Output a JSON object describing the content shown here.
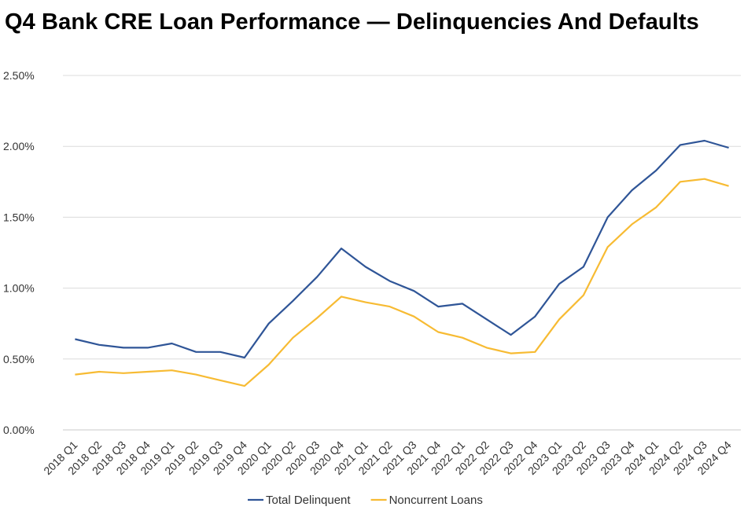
{
  "chart_data": {
    "type": "line",
    "title": "Q4 Bank CRE Loan Performance — Delinquencies And Defaults",
    "xlabel": "",
    "ylabel": "",
    "ylim": [
      0,
      2.5
    ],
    "y_ticks": [
      "0.00%",
      "0.50%",
      "1.00%",
      "1.50%",
      "2.00%",
      "2.50%"
    ],
    "y_tick_values": [
      0,
      0.5,
      1.0,
      1.5,
      2.0,
      2.5
    ],
    "grid": "horizontal",
    "legend_position": "bottom",
    "categories": [
      "2018 Q1",
      "2018 Q2",
      "2018 Q3",
      "2018 Q4",
      "2019 Q1",
      "2019 Q2",
      "2019 Q3",
      "2019 Q4",
      "2020 Q1",
      "2020 Q2",
      "2020 Q3",
      "2020 Q4",
      "2021 Q1",
      "2021 Q2",
      "2021 Q3",
      "2021 Q4",
      "2022 Q1",
      "2022 Q2",
      "2022 Q3",
      "2022 Q4",
      "2023 Q1",
      "2023 Q2",
      "2023 Q3",
      "2023 Q4",
      "2024 Q1",
      "2024 Q2",
      "2024 Q3",
      "2024 Q4"
    ],
    "series": [
      {
        "name": "Total Delinquent",
        "color": "#2f5597",
        "values": [
          0.64,
          0.6,
          0.58,
          0.58,
          0.61,
          0.55,
          0.55,
          0.51,
          0.75,
          0.91,
          1.08,
          1.28,
          1.15,
          1.05,
          0.98,
          0.87,
          0.89,
          0.78,
          0.67,
          0.8,
          1.03,
          1.15,
          1.5,
          1.69,
          1.83,
          2.01,
          2.04,
          1.99
        ]
      },
      {
        "name": "Noncurrent Loans",
        "color": "#f7bb33",
        "values": [
          0.39,
          0.41,
          0.4,
          0.41,
          0.42,
          0.39,
          0.35,
          0.31,
          0.46,
          0.65,
          0.79,
          0.94,
          0.9,
          0.87,
          0.8,
          0.69,
          0.65,
          0.58,
          0.54,
          0.55,
          0.78,
          0.95,
          1.29,
          1.45,
          1.57,
          1.75,
          1.77,
          1.72
        ]
      }
    ]
  }
}
